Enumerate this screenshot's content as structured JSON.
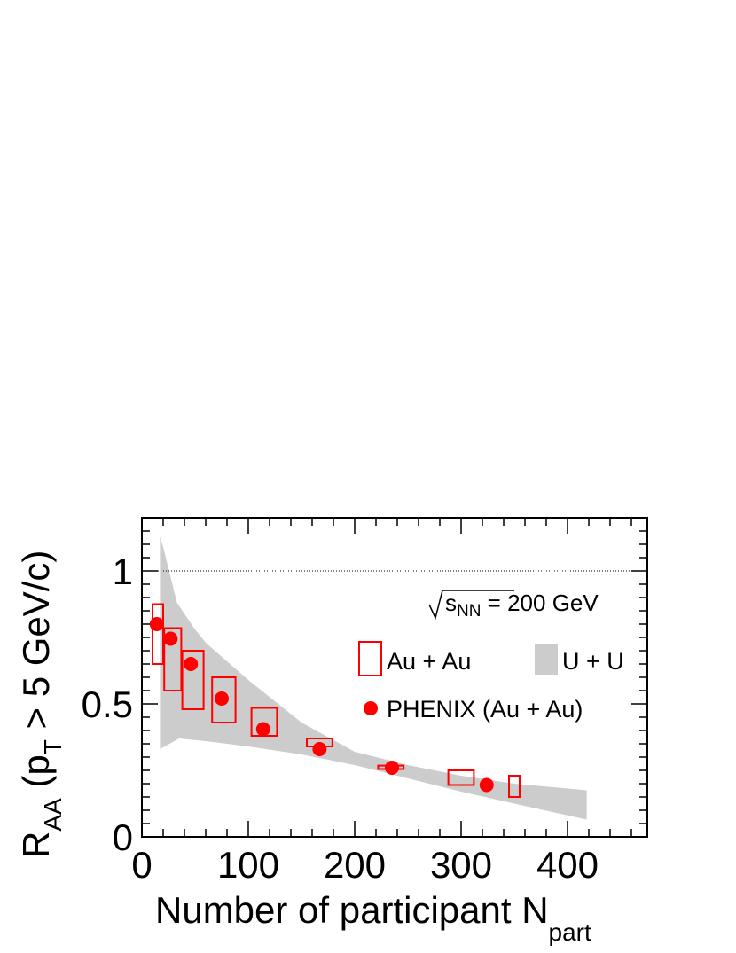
{
  "chart_data": {
    "type": "scatter",
    "xlabel": "Number of participant N",
    "xlabel_sub": "part",
    "ylabel_main": "R",
    "ylabel_sub1": "AA",
    "ylabel_mid": " (p",
    "ylabel_sub2": "T",
    "ylabel_end": " > 5 GeV/c)",
    "xlim": [
      0,
      475
    ],
    "ylim": [
      0,
      1.2
    ],
    "x_ticks": [
      0,
      100,
      200,
      300,
      400
    ],
    "x_tick_labels": [
      "0",
      "100",
      "200",
      "300",
      "400"
    ],
    "y_ticks": [
      0,
      0.5,
      1
    ],
    "y_tick_labels": [
      "0",
      "0.5",
      "1"
    ],
    "reference_line": 1,
    "energy_label": {
      "sqrt": "√",
      "s": "s",
      "sub": "NN",
      "value": " = 200 GeV"
    },
    "legend": {
      "auau": "Au + Au",
      "uu": "U + U",
      "phenix": "PHENIX (Au + Au)"
    },
    "colors": {
      "auau": "#ff0000",
      "phenix": "#ff0000",
      "uu_band": "#cccccc"
    },
    "uu_band": {
      "upper": [
        [
          17,
          1.13
        ],
        [
          20,
          1.09
        ],
        [
          33,
          0.88
        ],
        [
          50,
          0.78
        ],
        [
          60,
          0.73
        ],
        [
          80,
          0.66
        ],
        [
          100,
          0.59
        ],
        [
          150,
          0.43
        ],
        [
          200,
          0.32
        ],
        [
          250,
          0.27
        ],
        [
          300,
          0.23
        ],
        [
          350,
          0.2
        ],
        [
          418,
          0.175
        ]
      ],
      "lower": [
        [
          17,
          0.33
        ],
        [
          35,
          0.37
        ],
        [
          60,
          0.36
        ],
        [
          100,
          0.34
        ],
        [
          150,
          0.31
        ],
        [
          200,
          0.27
        ],
        [
          250,
          0.22
        ],
        [
          300,
          0.17
        ],
        [
          350,
          0.125
        ],
        [
          418,
          0.065
        ]
      ]
    },
    "auau_boxes": [
      {
        "x": 15,
        "y_low": 0.65,
        "y_high": 0.875,
        "half_width": 5
      },
      {
        "x": 29,
        "y_low": 0.55,
        "y_high": 0.785,
        "half_width": 8
      },
      {
        "x": 48,
        "y_low": 0.48,
        "y_high": 0.7,
        "half_width": 10
      },
      {
        "x": 77,
        "y_low": 0.43,
        "y_high": 0.6,
        "half_width": 11
      },
      {
        "x": 115,
        "y_low": 0.38,
        "y_high": 0.485,
        "half_width": 12
      },
      {
        "x": 167,
        "y_low": 0.34,
        "y_high": 0.37,
        "half_width": 12
      },
      {
        "x": 234,
        "y_low": 0.255,
        "y_high": 0.268,
        "half_width": 12
      },
      {
        "x": 300,
        "y_low": 0.195,
        "y_high": 0.25,
        "half_width": 12
      },
      {
        "x": 350,
        "y_low": 0.15,
        "y_high": 0.23,
        "half_width": 5
      }
    ],
    "phenix_points": [
      {
        "x": 14,
        "y": 0.8
      },
      {
        "x": 27,
        "y": 0.745
      },
      {
        "x": 46,
        "y": 0.65
      },
      {
        "x": 75,
        "y": 0.52
      },
      {
        "x": 114,
        "y": 0.405
      },
      {
        "x": 167,
        "y": 0.33
      },
      {
        "x": 235,
        "y": 0.26
      },
      {
        "x": 324,
        "y": 0.195
      }
    ]
  }
}
